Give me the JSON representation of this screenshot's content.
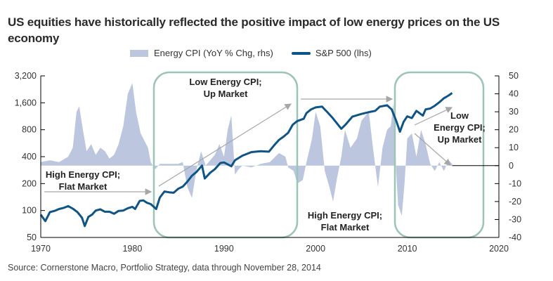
{
  "title": "US equities have historically reflected the positive impact of low energy prices on the US economy",
  "source": "Source: Cornerstone Macro, Portfolio Strategy, data through November 28, 2014",
  "colors": {
    "sp500": "#0e5485",
    "energy": "#bcc7df",
    "box": "#9cc5b6",
    "arrow": "#a6a6a6",
    "axis": "#000000"
  },
  "chart_data": {
    "type": "line",
    "title": "US equities have historically reflected the positive impact of low energy prices on the US economy",
    "legend": {
      "placement": "top-center",
      "entries": [
        "Energy CPI (YoY % Chg, rhs)",
        "S&P 500 (lhs)"
      ]
    },
    "xlabel": "",
    "xlim": [
      1970,
      2020
    ],
    "x_ticks": [
      "1970",
      "1980",
      "1990",
      "2000",
      "2010",
      "2020"
    ],
    "y_left": {
      "label": "S&P 500 (lhs)",
      "scale": "log2",
      "lim": [
        50,
        3200
      ],
      "ticks": [
        "3,200",
        "1,600",
        "800",
        "400",
        "200",
        "100",
        "50"
      ],
      "tick_values": [
        3200,
        1600,
        800,
        400,
        200,
        100,
        50
      ]
    },
    "y_right": {
      "label": "Energy CPI (YoY % Chg, rhs)",
      "lim": [
        -40,
        50
      ],
      "ticks": [
        "50",
        "40",
        "30",
        "20",
        "10",
        "0",
        "-10",
        "-20",
        "-30",
        "-40"
      ],
      "tick_values": [
        50,
        40,
        30,
        20,
        10,
        0,
        -10,
        -20,
        -30,
        -40
      ]
    },
    "series": [
      {
        "name": "S&P 500 (lhs)",
        "type": "line",
        "axis": "left",
        "x": [
          1970.0,
          1970.5,
          1971.0,
          1971.5,
          1972.0,
          1972.5,
          1973.0,
          1973.5,
          1974.0,
          1974.5,
          1974.8,
          1975.2,
          1975.6,
          1976.0,
          1976.5,
          1977.0,
          1977.5,
          1978.0,
          1978.5,
          1979.0,
          1979.5,
          1980.0,
          1980.3,
          1980.8,
          1981.2,
          1981.6,
          1982.0,
          1982.6,
          1983.0,
          1983.5,
          1984.0,
          1984.5,
          1985.0,
          1985.5,
          1986.0,
          1986.5,
          1987.0,
          1987.6,
          1987.9,
          1988.5,
          1989.0,
          1989.6,
          1990.0,
          1990.8,
          1991.2,
          1992.0,
          1993.0,
          1994.0,
          1994.9,
          1995.5,
          1996.0,
          1996.5,
          1997.0,
          1997.5,
          1998.0,
          1998.7,
          1999.0,
          1999.5,
          2000.0,
          2000.7,
          2001.3,
          2001.8,
          2002.3,
          2002.8,
          2003.3,
          2004.0,
          2005.0,
          2006.0,
          2006.5,
          2007.0,
          2007.8,
          2008.3,
          2008.8,
          2009.2,
          2009.6,
          2010.0,
          2010.5,
          2011.0,
          2011.7,
          2012.0,
          2012.5,
          2013.0,
          2013.5,
          2014.0,
          2014.5,
          2014.9
        ],
        "values": [
          90,
          76,
          96,
          99,
          104,
          107,
          112,
          105,
          96,
          83,
          67,
          85,
          90,
          100,
          103,
          97,
          97,
          92,
          99,
          100,
          106,
          110,
          104,
          128,
          130,
          122,
          118,
          104,
          140,
          163,
          160,
          158,
          175,
          185,
          210,
          245,
          270,
          318,
          228,
          265,
          290,
          340,
          345,
          312,
          365,
          410,
          450,
          460,
          455,
          540,
          615,
          670,
          740,
          910,
          1000,
          1060,
          1230,
          1350,
          1420,
          1450,
          1250,
          1100,
          950,
          820,
          920,
          1120,
          1200,
          1270,
          1300,
          1450,
          1500,
          1350,
          1000,
          760,
          980,
          1130,
          1080,
          1300,
          1150,
          1350,
          1380,
          1480,
          1620,
          1800,
          1930,
          2060
        ]
      },
      {
        "name": "Energy CPI (YoY % Chg, rhs)",
        "type": "area",
        "axis": "right",
        "x": [
          1970.0,
          1971.0,
          1972.0,
          1973.0,
          1973.5,
          1973.9,
          1974.2,
          1974.6,
          1975.0,
          1975.5,
          1976.0,
          1976.5,
          1977.0,
          1977.5,
          1978.0,
          1978.5,
          1979.0,
          1979.5,
          1980.0,
          1980.4,
          1980.9,
          1981.3,
          1981.7,
          1982.0,
          1982.5,
          1983.0,
          1984.0,
          1985.0,
          1985.5,
          1986.0,
          1986.5,
          1987.0,
          1987.5,
          1988.0,
          1988.5,
          1989.0,
          1989.5,
          1990.0,
          1990.4,
          1990.8,
          1991.2,
          1991.6,
          1992.0,
          1993.0,
          1994.0,
          1995.0,
          1996.0,
          1996.7,
          1997.0,
          1997.6,
          1998.0,
          1998.6,
          1999.0,
          1999.6,
          2000.0,
          2000.5,
          2001.0,
          2001.5,
          2001.9,
          2002.3,
          2002.8,
          2003.2,
          2003.8,
          2004.5,
          2005.0,
          2005.8,
          2006.3,
          2006.8,
          2007.3,
          2007.8,
          2008.2,
          2008.5,
          2008.8,
          2009.0,
          2009.4,
          2009.7,
          2010.0,
          2010.5,
          2011.0,
          2011.5,
          2012.0,
          2012.5,
          2013.0,
          2013.5,
          2014.0,
          2014.5,
          2014.9
        ],
        "values": [
          2,
          3,
          2,
          5,
          10,
          30,
          33,
          20,
          8,
          12,
          6,
          10,
          8,
          4,
          6,
          12,
          22,
          40,
          46,
          30,
          18,
          14,
          10,
          2,
          -2,
          1,
          1,
          1,
          2,
          -12,
          -18,
          -2,
          8,
          0,
          3,
          6,
          12,
          5,
          20,
          28,
          -5,
          -2,
          0,
          -1,
          1,
          2,
          7,
          5,
          -1,
          -3,
          -10,
          -8,
          2,
          15,
          30,
          22,
          -3,
          -12,
          -20,
          -8,
          5,
          20,
          10,
          15,
          25,
          30,
          8,
          -12,
          10,
          20,
          22,
          35,
          -5,
          -22,
          -28,
          -10,
          15,
          18,
          5,
          20,
          12,
          1,
          -3,
          2,
          -3,
          3,
          1
        ]
      }
    ],
    "annotations": [
      {
        "text": [
          "High Energy CPI;",
          "Flat Market"
        ],
        "period": [
          1970,
          1982.3
        ],
        "arrow": "horizontal"
      },
      {
        "text": [
          "Low Energy CPI;",
          "Up Market"
        ],
        "period": [
          1982.3,
          1998
        ],
        "arrow": "diagonal-up",
        "boxed": true
      },
      {
        "text": [
          "High Energy CPI;",
          "Flat Market"
        ],
        "period": [
          1998,
          2008.8
        ],
        "arrow": "horizontal"
      },
      {
        "text": [
          "Low",
          "Energy CPI;",
          "Up Market"
        ],
        "period": [
          2008.8,
          2014.9
        ],
        "arrow": "diagonal-up-and-down",
        "boxed": true
      }
    ]
  }
}
